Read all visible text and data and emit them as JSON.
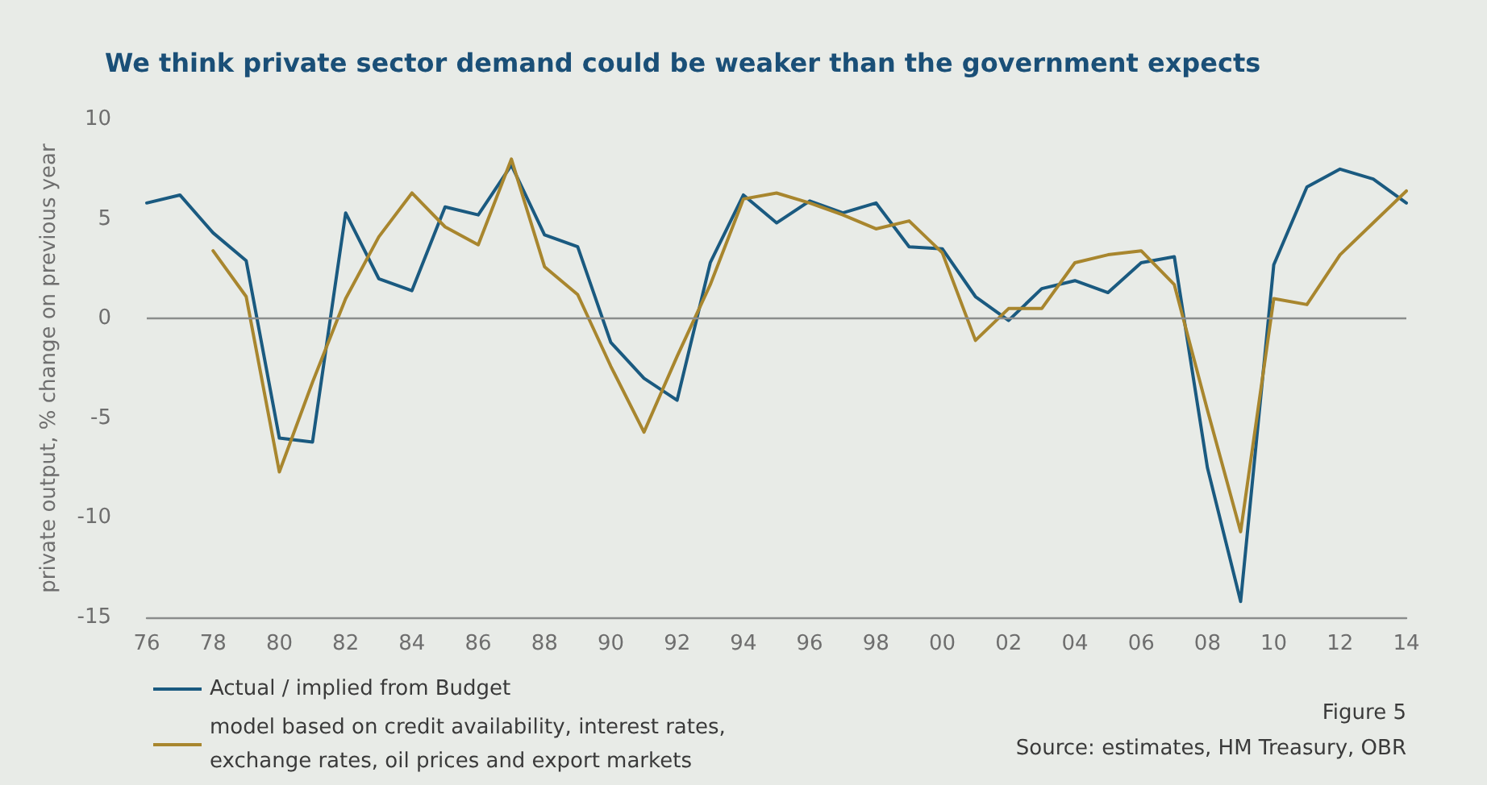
{
  "chart_data": {
    "type": "line",
    "title": "We think private sector demand could be weaker than the government expects",
    "ylabel": "private output, % change on previous year",
    "categories": [
      "76",
      null,
      "78",
      null,
      "80",
      null,
      "82",
      null,
      "84",
      null,
      "86",
      null,
      "88",
      null,
      "90",
      null,
      "92",
      null,
      "94",
      null,
      "96",
      null,
      "98",
      null,
      "00",
      null,
      "02",
      null,
      "04",
      null,
      "06",
      null,
      "08",
      null,
      "10",
      null,
      "12",
      null,
      "14"
    ],
    "series": [
      {
        "name": "Actual / implied from Budget",
        "color": "#1a5a80",
        "values": [
          5.8,
          6.2,
          4.3,
          2.9,
          -6.0,
          -6.2,
          5.3,
          2.0,
          1.4,
          5.6,
          5.2,
          7.7,
          4.2,
          3.6,
          -1.2,
          -3.0,
          -4.1,
          2.8,
          6.2,
          4.8,
          5.9,
          5.3,
          5.8,
          3.6,
          3.5,
          1.1,
          -0.1,
          1.5,
          1.9,
          1.3,
          2.8,
          3.1,
          -7.5,
          -14.2,
          2.7,
          6.6,
          7.5,
          7.0,
          5.8
        ]
      },
      {
        "name": "model based on credit availability, interest rates, exchange rates, oil prices and export markets",
        "color": "#a8862e",
        "values": [
          null,
          null,
          3.4,
          1.1,
          -7.7,
          -3.2,
          1.0,
          4.1,
          6.3,
          4.6,
          3.7,
          8.0,
          2.6,
          1.2,
          -2.4,
          -5.7,
          -1.9,
          1.7,
          6.0,
          6.3,
          5.8,
          5.2,
          4.5,
          4.9,
          3.3,
          -1.1,
          0.5,
          0.5,
          2.8,
          3.2,
          3.4,
          1.7,
          -4.6,
          -10.7,
          1.0,
          0.7,
          3.2,
          4.8,
          6.4
        ]
      }
    ],
    "ylim": [
      -15,
      10
    ],
    "yticks": [
      -15,
      -10,
      -5,
      0,
      5,
      10
    ],
    "grid": false,
    "legend": "bottom left",
    "marker": "none",
    "line_style": "solid",
    "ref_lines": [
      {
        "axis": "y",
        "value": 0,
        "color": "#8a8d8c"
      }
    ],
    "annotations": [
      "Figure 5",
      "Source: estimates, HM Treasury, OBR"
    ]
  }
}
